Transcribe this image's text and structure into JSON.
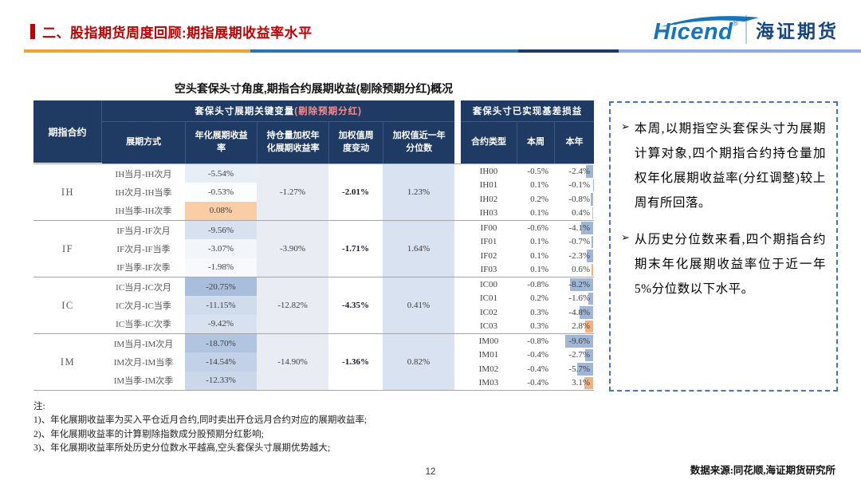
{
  "header": {
    "title": "二、股指期货周度回顾:期指展期收益率水平",
    "logo_text": "Hicend",
    "logo_reg": "®",
    "logo_cn": "海证期货"
  },
  "table": {
    "title": "空头套保头寸角度,期指合约展期收益(剔除预期分红)概况",
    "col_group_left": "套保头寸展期关键变量",
    "col_group_left_red": "(剔除预期分红)",
    "col_group_right": "套保头寸已实现基差损益",
    "columns": {
      "contract": "期指合约",
      "method": "展期方式",
      "annual_yield": "年化展期收益率",
      "weighted_yield": "持仓量加权年化展期收益率",
      "weekly_change": "加权值周度变动",
      "percentile": "加权值近一年分位数",
      "contract_type": "合约类型",
      "this_week": "本周",
      "this_year": "本年"
    },
    "groups": [
      {
        "contract": "IH",
        "rows": [
          {
            "method": "IH当月-IH次月",
            "rate": "-5.54%",
            "rate_v": -5.54
          },
          {
            "method": "IH次月-IH当季",
            "rate": "-0.53%",
            "rate_v": -0.53
          },
          {
            "method": "IH当季-IH次季",
            "rate": "0.08%",
            "rate_v": 0.08
          }
        ],
        "weighted": "-1.27%",
        "weekly_change": "-2.01%",
        "percentile": "1.23%",
        "basis": [
          {
            "type": "IH00",
            "week": "-0.5%",
            "year": "-2.4%",
            "year_v": -2.4
          },
          {
            "type": "IH01",
            "week": "0.1%",
            "year": "-0.1%",
            "year_v": -0.1
          },
          {
            "type": "IH02",
            "week": "0.2%",
            "year": "-0.8%",
            "year_v": -0.8
          },
          {
            "type": "IH03",
            "week": "0.1%",
            "year": "0.4%",
            "year_v": 0.4
          }
        ]
      },
      {
        "contract": "IF",
        "rows": [
          {
            "method": "IF当月-IF次月",
            "rate": "-9.56%",
            "rate_v": -9.56
          },
          {
            "method": "IF次月-IF当季",
            "rate": "-3.07%",
            "rate_v": -3.07
          },
          {
            "method": "IF当季-IF次季",
            "rate": "-1.98%",
            "rate_v": -1.98
          }
        ],
        "weighted": "-3.90%",
        "weekly_change": "-1.71%",
        "percentile": "1.64%",
        "basis": [
          {
            "type": "IF00",
            "week": "-0.6%",
            "year": "-4.1%",
            "year_v": -4.1
          },
          {
            "type": "IF01",
            "week": "0.1%",
            "year": "-0.7%",
            "year_v": -0.7
          },
          {
            "type": "IF02",
            "week": "0.1%",
            "year": "-2.3%",
            "year_v": -2.3
          },
          {
            "type": "IF03",
            "week": "0.1%",
            "year": "0.6%",
            "year_v": 0.6
          }
        ]
      },
      {
        "contract": "IC",
        "rows": [
          {
            "method": "IC当月-IC次月",
            "rate": "-20.75%",
            "rate_v": -20.75
          },
          {
            "method": "IC次月-IC当季",
            "rate": "-11.15%",
            "rate_v": -11.15
          },
          {
            "method": "IC当季-IC次季",
            "rate": "-9.42%",
            "rate_v": -9.42
          }
        ],
        "weighted": "-12.82%",
        "weekly_change": "-4.35%",
        "percentile": "0.41%",
        "basis": [
          {
            "type": "IC00",
            "week": "-0.8%",
            "year": "-8.2%",
            "year_v": -8.2
          },
          {
            "type": "IC01",
            "week": "0.2%",
            "year": "-1.6%",
            "year_v": -1.6
          },
          {
            "type": "IC02",
            "week": "0.3%",
            "year": "-4.8%",
            "year_v": -4.8
          },
          {
            "type": "IC03",
            "week": "0.3%",
            "year": "2.8%",
            "year_v": 2.8
          }
        ]
      },
      {
        "contract": "IM",
        "rows": [
          {
            "method": "IM当月-IM次月",
            "rate": "-18.70%",
            "rate_v": -18.7
          },
          {
            "method": "IM次月-IM当季",
            "rate": "-14.54%",
            "rate_v": -14.54
          },
          {
            "method": "IM当季-IM次季",
            "rate": "-12.33%",
            "rate_v": -12.33
          }
        ],
        "weighted": "-14.90%",
        "weekly_change": "-1.36%",
        "percentile": "0.82%",
        "basis": [
          {
            "type": "IM00",
            "week": "-0.8%",
            "year": "-9.6%",
            "year_v": -9.6
          },
          {
            "type": "IM01",
            "week": "-0.4%",
            "year": "-2.7%",
            "year_v": -2.7
          },
          {
            "type": "IM02",
            "week": "-0.4%",
            "year": "-5.7%",
            "year_v": -5.7
          },
          {
            "type": "IM03",
            "week": "-0.4%",
            "year": "3.1%",
            "year_v": 3.1
          }
        ]
      }
    ]
  },
  "commentary": {
    "bullets": [
      "本周,以期指空头套保头寸为展期计算对象,四个期指合约持仓量加权年化展期收益率(分红调整)较上周有所回落。",
      "从历史分位数来看,四个期指合约期末年化展期收益率位于近一年5%分位数以下水平。"
    ]
  },
  "notes": {
    "label": "注:",
    "items": [
      "1)、年化展期收益率为买入平仓近月合约,同时卖出开仓远月合约对应的展期收益率;",
      "2)、年化展期收益率的计算剔除指数成分股预期分红影响;",
      "3)、年化展期收益率所处历史分位数水平越高,空头套保头寸展期优势越大;"
    ]
  },
  "footer": {
    "page": "12",
    "source": "数据来源:同花顺,海证期货研究所"
  },
  "colors": {
    "title_red": "#c00000",
    "header_navy": "#1f3a63",
    "negative_fill": "#a7bddc",
    "positive_fill": "#f9cda6",
    "negative_bar": "#9fb6d8",
    "positive_bar": "#f3b17c",
    "commentary_border": "#4472c4"
  }
}
